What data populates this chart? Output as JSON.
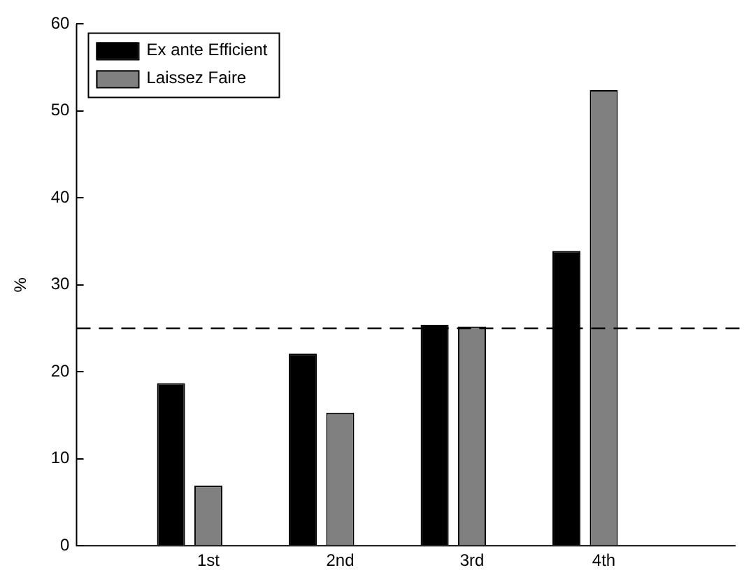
{
  "chart_data": {
    "type": "bar",
    "categories": [
      null,
      "1st",
      "2nd",
      "3rd",
      "4th",
      null
    ],
    "series": [
      {
        "name": "Ex ante Efficient",
        "color": "#000000",
        "values": [
          null,
          18.7,
          22.1,
          25.4,
          33.9,
          null
        ]
      },
      {
        "name": "Laissez Faire",
        "color": "#808080",
        "values": [
          null,
          6.9,
          15.3,
          25.2,
          52.4,
          null
        ]
      },
      {
        "color": "#000000",
        "values": [
          null,
          0,
          0,
          0,
          0,
          null
        ]
      }
    ],
    "ylabel": "%",
    "ylim": [
      0,
      60
    ],
    "yticks": [
      0,
      10,
      20,
      30,
      40,
      50,
      60
    ],
    "grid": false,
    "legend": "top left",
    "ref_lines": [
      {
        "axis": "y",
        "value": 25,
        "line_style": "dashed",
        "color": "#000000"
      }
    ]
  }
}
